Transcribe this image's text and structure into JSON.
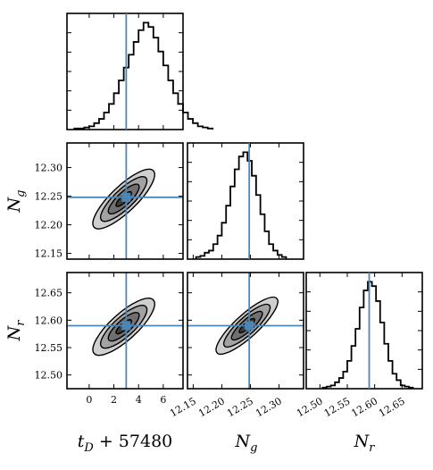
{
  "chart_data": {
    "type": "corner",
    "parameters": [
      {
        "id": "tD",
        "label": "t_D + 57480",
        "range": [
          -1.8,
          7.6
        ],
        "ticks": [
          0,
          2,
          4,
          6
        ],
        "truth": 3.0
      },
      {
        "id": "Ng",
        "label": "N_g",
        "range": [
          12.14,
          12.343
        ],
        "ticks": [
          12.15,
          12.2,
          12.25,
          12.3
        ],
        "truth": 12.248
      },
      {
        "id": "Nr",
        "label": "N_r",
        "range": [
          12.475,
          12.687
        ],
        "ticks": [
          12.5,
          12.55,
          12.6,
          12.65
        ],
        "truth": 12.59
      }
    ],
    "tick_labels": {
      "tD": [
        "0",
        "2",
        "4",
        "6"
      ],
      "Ng": [
        "12.15",
        "12.20",
        "12.25",
        "12.30"
      ],
      "Nr": [
        "12.50",
        "12.55",
        "12.60",
        "12.65"
      ],
      "Ng_x": [
        "12.15",
        "12.20",
        "12.25",
        "12.30"
      ],
      "Nr_x": [
        "12.50",
        "12.55",
        "12.60",
        "12.65"
      ]
    },
    "histograms": {
      "tD": {
        "bin_edges_start": -1.2,
        "bin_width": 0.4,
        "counts": [
          1,
          1,
          2,
          3,
          6,
          10,
          16,
          24,
          34,
          46,
          58,
          70,
          82,
          93,
          100,
          96,
          86,
          73,
          60,
          46,
          34,
          24,
          16,
          10,
          6,
          3,
          2,
          1
        ]
      },
      "Ng": {
        "bin_edges_start": 12.155,
        "bin_width": 0.0075,
        "counts": [
          2,
          3,
          6,
          8,
          14,
          22,
          34,
          50,
          68,
          84,
          96,
          100,
          92,
          78,
          60,
          42,
          26,
          14,
          8,
          4,
          2
        ]
      },
      "Nr": {
        "bin_edges_start": 12.505,
        "bin_width": 0.0075,
        "counts": [
          1,
          2,
          3,
          6,
          10,
          16,
          26,
          40,
          56,
          76,
          92,
          100,
          96,
          82,
          62,
          42,
          26,
          14,
          8,
          3,
          2,
          1
        ]
      }
    },
    "contours_2d": [
      {
        "x": "tD",
        "y": "Ng",
        "center": [
          2.8,
          12.245
        ],
        "sigma": [
          1.25,
          0.026
        ],
        "rho": 0.82
      },
      {
        "x": "tD",
        "y": "Nr",
        "center": [
          2.8,
          12.588
        ],
        "sigma": [
          1.25,
          0.026
        ],
        "rho": 0.8
      },
      {
        "x": "Ng",
        "y": "Nr",
        "center": [
          12.244,
          12.59
        ],
        "sigma": [
          0.027,
          0.026
        ],
        "rho": 0.85
      }
    ],
    "contour_levels_sigma": [
      0.5,
      1.0,
      1.5,
      2.0
    ],
    "contour_fills": [
      "#cfcfcf",
      "#a2a2a2",
      "#707070",
      "#3e3e3e"
    ]
  }
}
